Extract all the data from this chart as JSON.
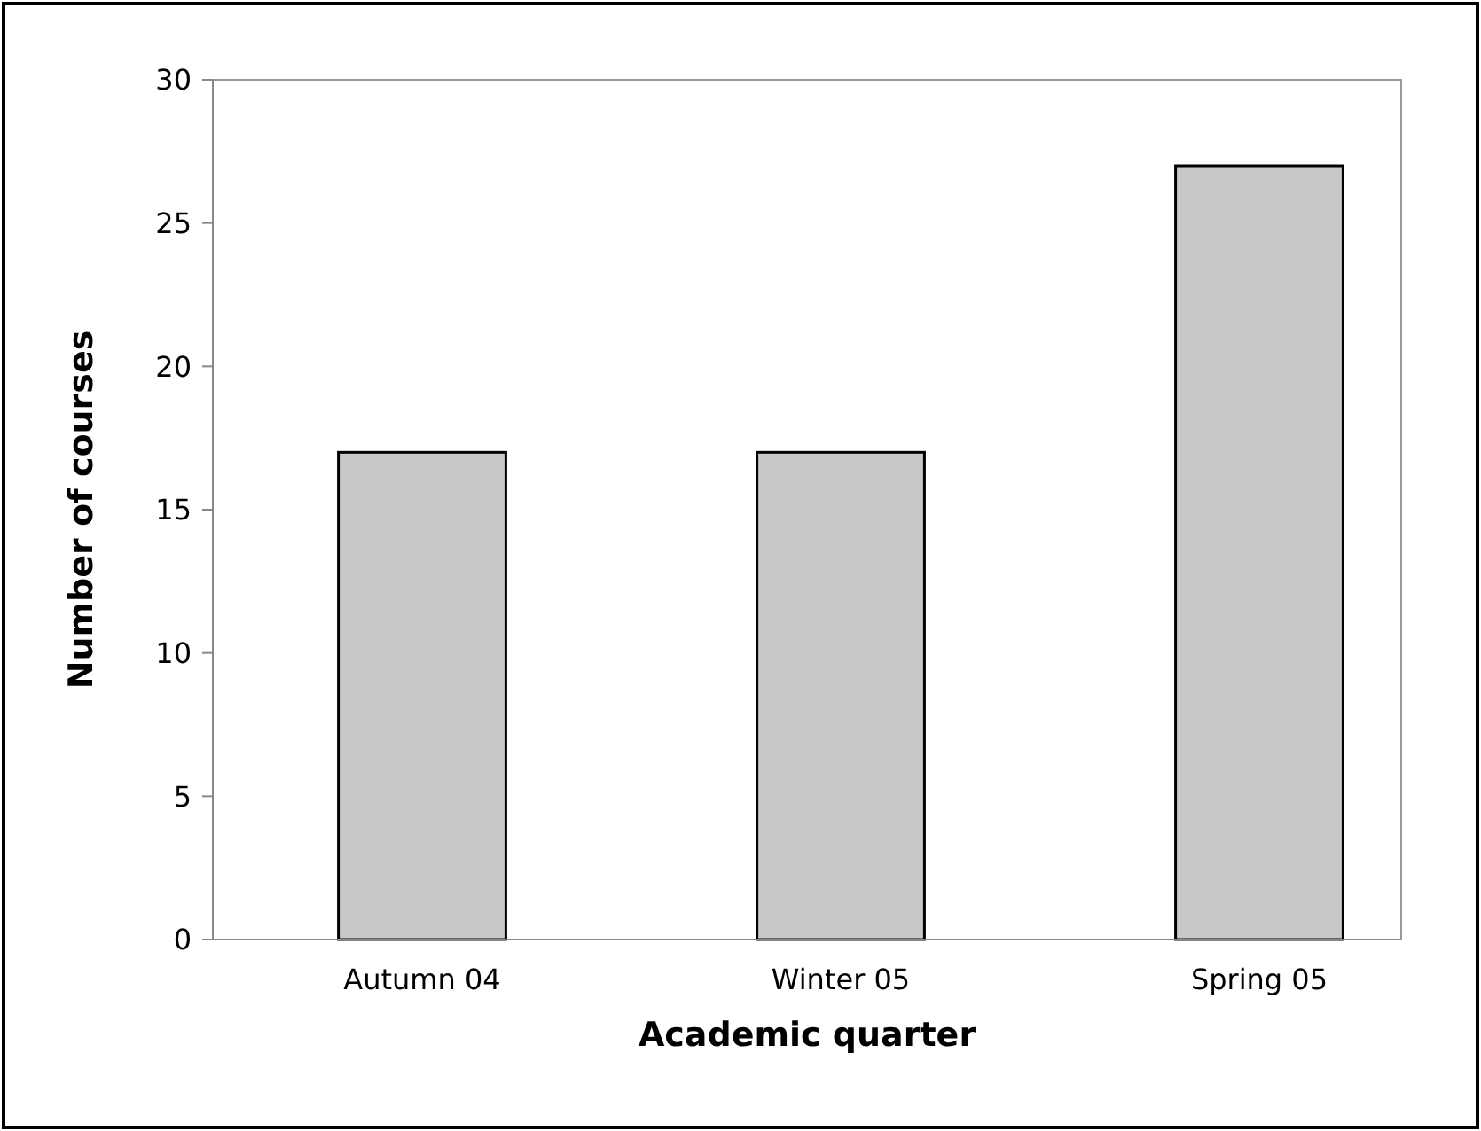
{
  "chart_data": {
    "type": "bar",
    "xlabel": "Academic quarter",
    "ylabel": "Number of courses",
    "categories": [
      "Autumn 04",
      "Winter 05",
      "Spring 05"
    ],
    "values": [
      17,
      17,
      27
    ],
    "color": "#c8c8c8",
    "ylim": [
      0,
      30
    ],
    "yticks": [
      0,
      5,
      10,
      15,
      20,
      25,
      30
    ],
    "grid": false
  }
}
